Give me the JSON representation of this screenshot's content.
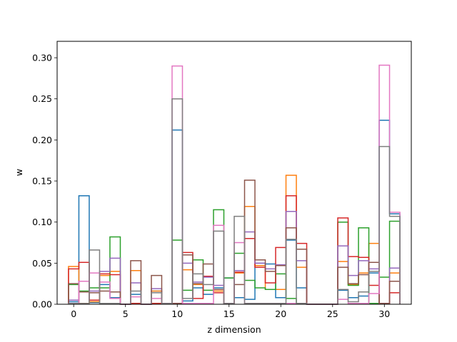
{
  "chart_data": {
    "type": "step-histogram",
    "title": "",
    "xlabel": "z dimension",
    "ylabel": "w",
    "xlim": [
      -1.6,
      32.6
    ],
    "ylim": [
      0,
      0.32
    ],
    "x_ticks": [
      0,
      5,
      10,
      15,
      20,
      25,
      30
    ],
    "y_ticks": [
      0.0,
      0.05,
      0.1,
      0.15,
      0.2,
      0.25,
      0.3
    ],
    "y_tick_labels": [
      "0.00",
      "0.05",
      "0.10",
      "0.15",
      "0.20",
      "0.25",
      "0.30"
    ],
    "grid": false,
    "legend": "none",
    "bin_edges": [
      -0.5,
      0.5,
      1.5,
      2.5,
      3.5,
      4.5,
      5.5,
      6.5,
      7.5,
      8.5,
      9.5,
      10.5,
      11.5,
      12.5,
      13.5,
      14.5,
      15.5,
      16.5,
      17.5,
      18.5,
      19.5,
      20.5,
      21.5,
      22.5,
      23.5,
      24.5,
      25.5,
      26.5,
      27.5,
      28.5,
      29.5,
      30.5,
      31.5
    ],
    "series": [
      {
        "color": "#1f77b4",
        "values": [
          0.003,
          0.132,
          0.002,
          0.024,
          0.008,
          0.0,
          0.012,
          0.0,
          0.016,
          0.001,
          0.212,
          0.004,
          0.02,
          0.012,
          0.02,
          0.032,
          0.008,
          0.006,
          0.05,
          0.049,
          0.008,
          0.078,
          0.02,
          0.0,
          0.0,
          0.0,
          0.017,
          0.008,
          0.01,
          0.038,
          0.224,
          0.11
        ]
      },
      {
        "color": "#ff7f0e",
        "values": [
          0.046,
          0.001,
          0.003,
          0.035,
          0.04,
          0.0,
          0.041,
          0.0,
          0.016,
          0.001,
          0.001,
          0.042,
          0.024,
          0.034,
          0.016,
          0.001,
          0.038,
          0.119,
          0.047,
          0.018,
          0.018,
          0.157,
          0.045,
          0.0,
          0.0,
          0.0,
          0.052,
          0.024,
          0.038,
          0.074,
          0.001,
          0.038
        ]
      },
      {
        "color": "#2ca02c",
        "values": [
          0.024,
          0.016,
          0.02,
          0.02,
          0.082,
          0.0,
          0.001,
          0.0,
          0.001,
          0.001,
          0.078,
          0.017,
          0.054,
          0.017,
          0.115,
          0.032,
          0.062,
          0.029,
          0.02,
          0.018,
          0.037,
          0.007,
          0.001,
          0.0,
          0.0,
          0.0,
          0.1,
          0.023,
          0.093,
          0.001,
          0.033,
          0.101
        ]
      },
      {
        "color": "#d62728",
        "values": [
          0.043,
          0.051,
          0.005,
          0.037,
          0.036,
          0.0,
          0.001,
          0.0,
          0.001,
          0.001,
          0.001,
          0.063,
          0.007,
          0.034,
          0.014,
          0.001,
          0.039,
          0.08,
          0.045,
          0.026,
          0.069,
          0.132,
          0.074,
          0.0,
          0.0,
          0.0,
          0.105,
          0.058,
          0.057,
          0.023,
          0.001,
          0.014
        ]
      },
      {
        "color": "#9467bd",
        "values": [
          0.005,
          0.028,
          0.016,
          0.04,
          0.056,
          0.0,
          0.026,
          0.0,
          0.019,
          0.001,
          0.001,
          0.05,
          0.027,
          0.033,
          0.023,
          0.001,
          0.041,
          0.088,
          0.05,
          0.043,
          0.048,
          0.113,
          0.053,
          0.0,
          0.0,
          0.0,
          0.071,
          0.035,
          0.053,
          0.043,
          0.001,
          0.044
        ]
      },
      {
        "color": "#8c564b",
        "values": [
          0.025,
          0.015,
          0.014,
          0.016,
          0.015,
          0.0,
          0.053,
          0.0,
          0.035,
          0.001,
          0.001,
          0.06,
          0.025,
          0.049,
          0.018,
          0.001,
          0.024,
          0.151,
          0.054,
          0.04,
          0.047,
          0.093,
          0.067,
          0.0,
          0.0,
          0.0,
          0.045,
          0.025,
          0.036,
          0.051,
          0.001,
          0.028
        ]
      },
      {
        "color": "#e377c2",
        "values": [
          0.001,
          0.028,
          0.038,
          0.027,
          0.007,
          0.0,
          0.009,
          0.0,
          0.007,
          0.001,
          0.29,
          0.001,
          0.001,
          0.001,
          0.096,
          0.001,
          0.075,
          0.001,
          0.001,
          0.001,
          0.001,
          0.001,
          0.001,
          0.0,
          0.0,
          0.0,
          0.006,
          0.001,
          0.001,
          0.013,
          0.291,
          0.112
        ]
      },
      {
        "color": "#7f7f7f",
        "values": [
          0.001,
          0.001,
          0.066,
          0.001,
          0.001,
          0.0,
          0.016,
          0.0,
          0.014,
          0.001,
          0.25,
          0.007,
          0.037,
          0.024,
          0.089,
          0.001,
          0.107,
          0.001,
          0.001,
          0.001,
          0.001,
          0.079,
          0.001,
          0.0,
          0.0,
          0.0,
          0.018,
          0.003,
          0.015,
          0.04,
          0.192,
          0.107
        ]
      }
    ]
  }
}
